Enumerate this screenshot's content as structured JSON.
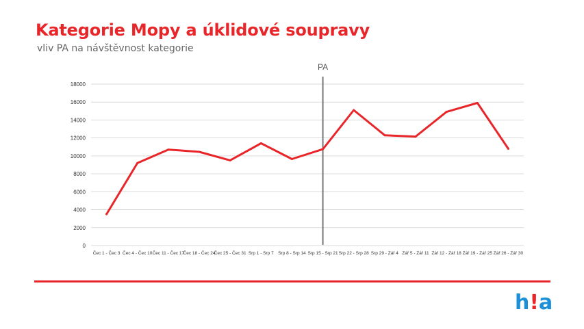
{
  "header": {
    "title": "Kategorie Mopy a úklidové soupravy",
    "subtitle": "vliv PA na návštěvnost kategorie"
  },
  "logo": {
    "part1": "h",
    "part2": "!",
    "part3": "a"
  },
  "colors": {
    "accent": "#e8262a",
    "line": "#e8262a",
    "marker": "#777777",
    "grid": "#d9d9d9",
    "logo_blue": "#1d8fd6"
  },
  "chart_data": {
    "type": "line",
    "categories": [
      "Čec 1 - Čec 3",
      "Čec 4 - Čec 10",
      "Čec 11 - Čec 17",
      "Čec 18 - Čec 24",
      "Čec 25 - Čec 31",
      "Srp 1 - Srp 7",
      "Srp 8 - Srp 14",
      "Srp 15 - Srp 21",
      "Srp 22 - Srp 28",
      "Srp 29 - Zář 4",
      "Zář 5 - Zář 11",
      "Zář 12 - Zář 18",
      "Zář 19 - Zář 25",
      "Zář 26 - Zář 30"
    ],
    "series": [
      {
        "values": [
          3500,
          9200,
          10700,
          10450,
          9500,
          11400,
          9650,
          10750,
          15100,
          12300,
          12150,
          14900,
          15900,
          10800
        ]
      }
    ],
    "ylim": [
      0,
      18000
    ],
    "yticks": [
      0,
      2000,
      4000,
      6000,
      8000,
      10000,
      12000,
      14000,
      16000,
      18000
    ],
    "grid": true,
    "annotations": [
      {
        "label": "PA",
        "category": "Srp 15 - Srp 21"
      }
    ]
  }
}
